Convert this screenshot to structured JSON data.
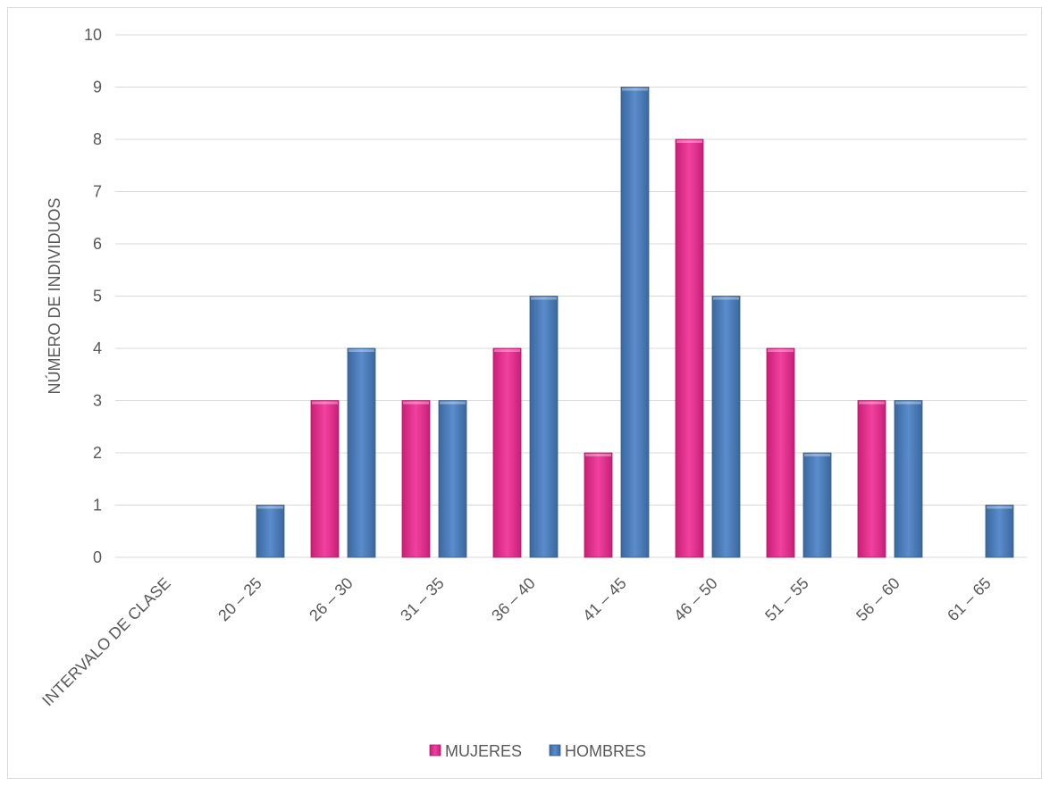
{
  "chart_data": {
    "type": "bar",
    "title": "",
    "xlabel": "",
    "ylabel": "NÚMERO DE INDIVIDUOS",
    "categories": [
      "INTERVALO DE CLASE",
      "20 – 25",
      "26 – 30",
      "31 – 35",
      "36 – 40",
      "41 – 45",
      "46 – 50",
      "51 – 55",
      "56 – 60",
      "61 – 65"
    ],
    "series": [
      {
        "name": "MUJERES",
        "color": "#f0359a",
        "values": [
          0,
          0,
          3,
          3,
          4,
          2,
          8,
          4,
          3,
          0
        ]
      },
      {
        "name": "HOMBRES",
        "color": "#4f81bd",
        "values": [
          0,
          1,
          4,
          3,
          5,
          9,
          5,
          2,
          3,
          1
        ]
      }
    ],
    "ylim": [
      0,
      10
    ],
    "yticks": [
      "0",
      "1",
      "2",
      "3",
      "4",
      "5",
      "6",
      "7",
      "8",
      "9",
      "10"
    ],
    "grid": true,
    "legend_position": "bottom"
  }
}
